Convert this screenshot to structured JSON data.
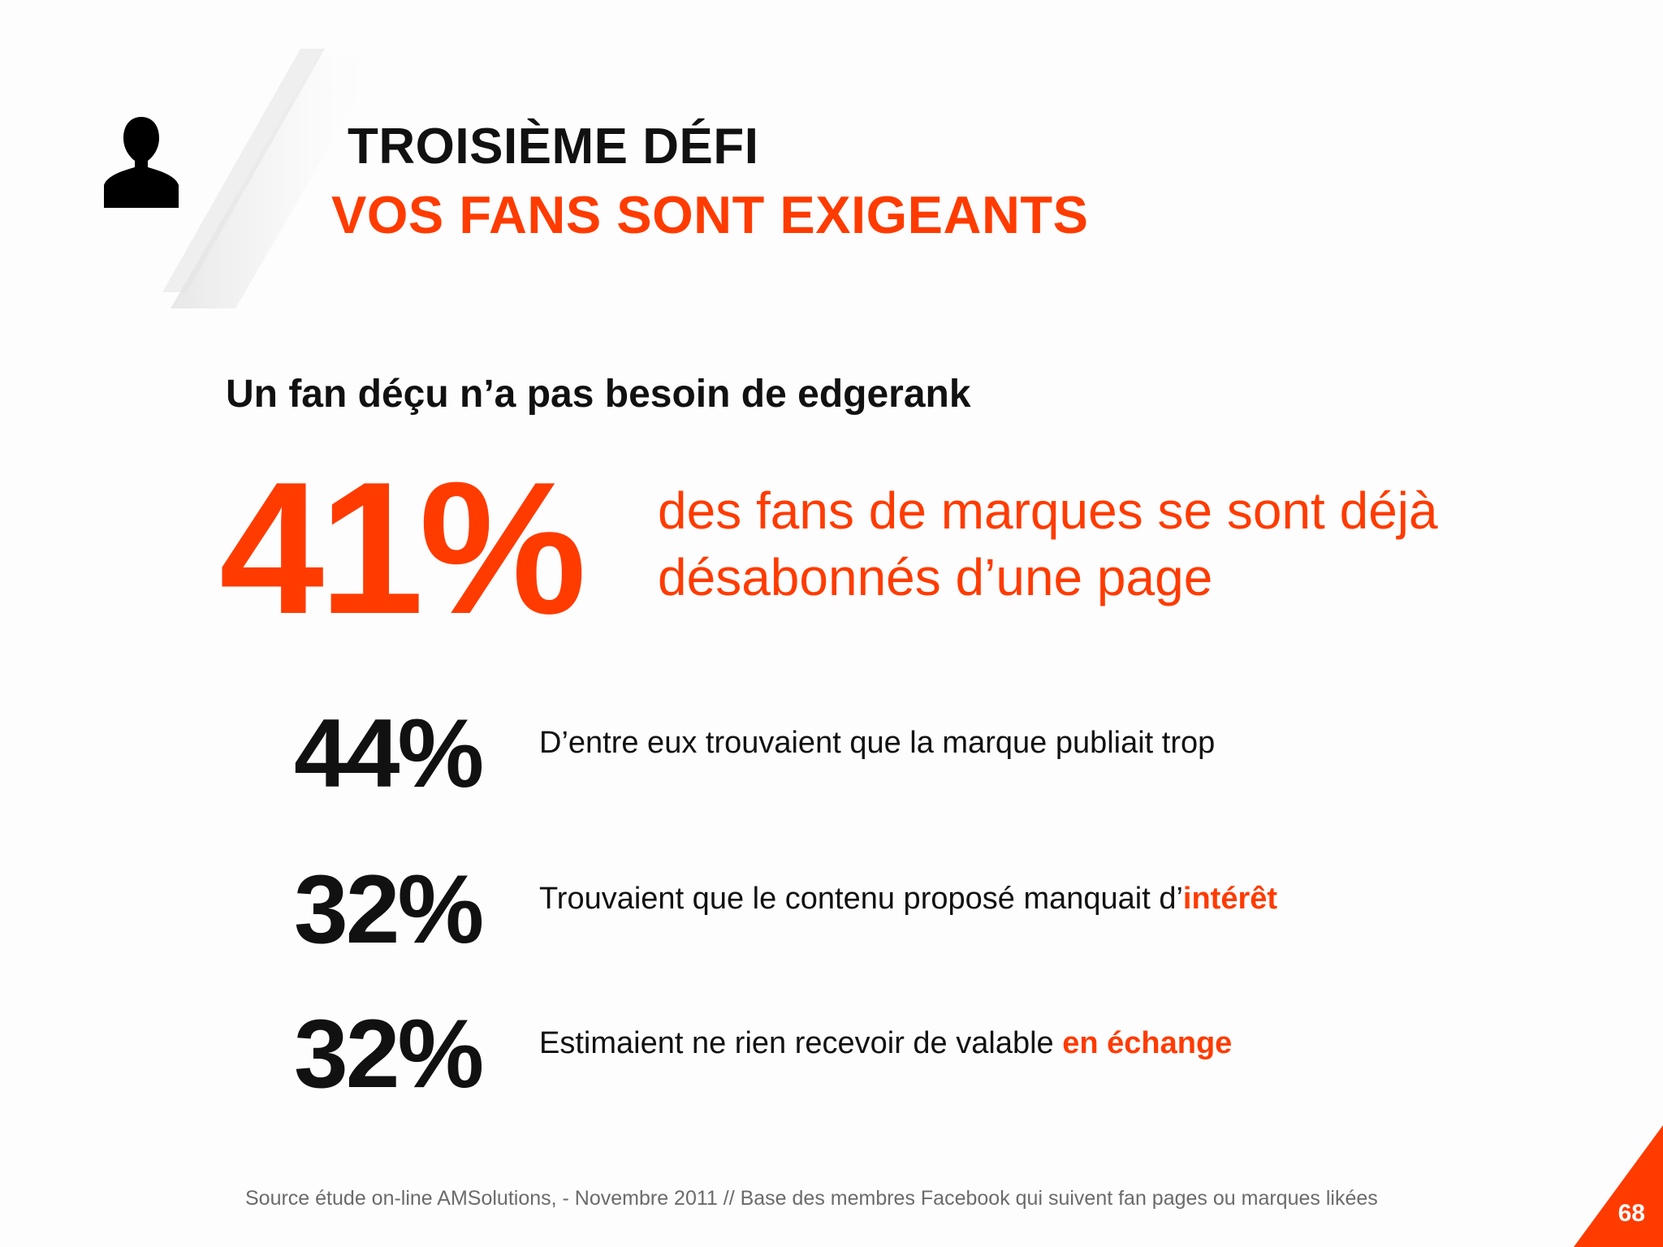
{
  "header": {
    "title": "TROISIÈME DÉFI",
    "subtitle": "VOS FANS SONT EXIGEANTS",
    "icon": "person-icon"
  },
  "main": {
    "lead": "Un fan déçu n’a pas besoin de edgerank",
    "highlight": {
      "value": "41%",
      "line1": "des fans de marques se sont déjà",
      "line2": "désabonnés d’une page"
    },
    "stats": [
      {
        "value": "44%",
        "text": "D’entre eux trouvaient que la marque publiait trop",
        "accent": ""
      },
      {
        "value": "32%",
        "text": "Trouvaient que le contenu proposé manquait d’",
        "accent": "intérêt"
      },
      {
        "value": "32%",
        "text": "Estimaient ne rien recevoir de valable ",
        "accent": "en échange"
      }
    ]
  },
  "footer": {
    "source": "Source étude on-line AMSolutions, - Novembre 2011 // Base des membres Facebook qui suivent fan pages ou marques likées",
    "page_number": "68"
  },
  "colors": {
    "accent": "#ff3b00",
    "text": "#111111",
    "source": "#6b6b6b"
  }
}
